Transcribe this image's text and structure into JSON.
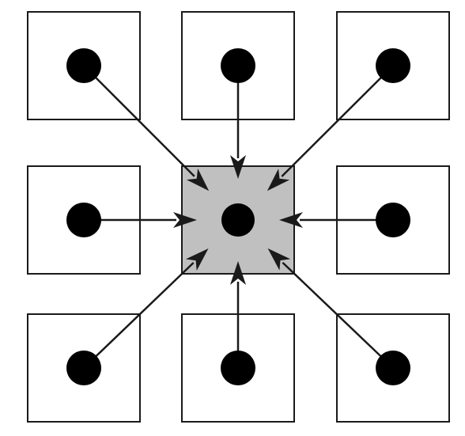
{
  "diagram": {
    "type": "neighborhood-grid",
    "rows": 3,
    "columns": 3,
    "center_cell": {
      "row": 1,
      "col": 1
    },
    "colors": {
      "background": "#ffffff",
      "cell_stroke": "#1a1a1a",
      "center_fill": "#c0c0c0",
      "node_fill": "#000000",
      "arrow_color": "#1a1a1a"
    },
    "cells": [
      {
        "row": 0,
        "col": 0,
        "role": "neighbor"
      },
      {
        "row": 0,
        "col": 1,
        "role": "neighbor"
      },
      {
        "row": 0,
        "col": 2,
        "role": "neighbor"
      },
      {
        "row": 1,
        "col": 0,
        "role": "neighbor"
      },
      {
        "row": 1,
        "col": 1,
        "role": "center"
      },
      {
        "row": 1,
        "col": 2,
        "role": "neighbor"
      },
      {
        "row": 2,
        "col": 0,
        "role": "neighbor"
      },
      {
        "row": 2,
        "col": 1,
        "role": "neighbor"
      },
      {
        "row": 2,
        "col": 2,
        "role": "neighbor"
      }
    ],
    "edges": [
      {
        "from": {
          "row": 0,
          "col": 0
        },
        "to": {
          "row": 1,
          "col": 1
        },
        "direction": "inward"
      },
      {
        "from": {
          "row": 0,
          "col": 1
        },
        "to": {
          "row": 1,
          "col": 1
        },
        "direction": "inward"
      },
      {
        "from": {
          "row": 0,
          "col": 2
        },
        "to": {
          "row": 1,
          "col": 1
        },
        "direction": "inward"
      },
      {
        "from": {
          "row": 1,
          "col": 0
        },
        "to": {
          "row": 1,
          "col": 1
        },
        "direction": "inward"
      },
      {
        "from": {
          "row": 1,
          "col": 2
        },
        "to": {
          "row": 1,
          "col": 1
        },
        "direction": "inward"
      },
      {
        "from": {
          "row": 2,
          "col": 0
        },
        "to": {
          "row": 1,
          "col": 1
        },
        "direction": "inward"
      },
      {
        "from": {
          "row": 2,
          "col": 1
        },
        "to": {
          "row": 1,
          "col": 1
        },
        "direction": "inward"
      },
      {
        "from": {
          "row": 2,
          "col": 2
        },
        "to": {
          "row": 1,
          "col": 1
        },
        "direction": "inward"
      }
    ]
  }
}
